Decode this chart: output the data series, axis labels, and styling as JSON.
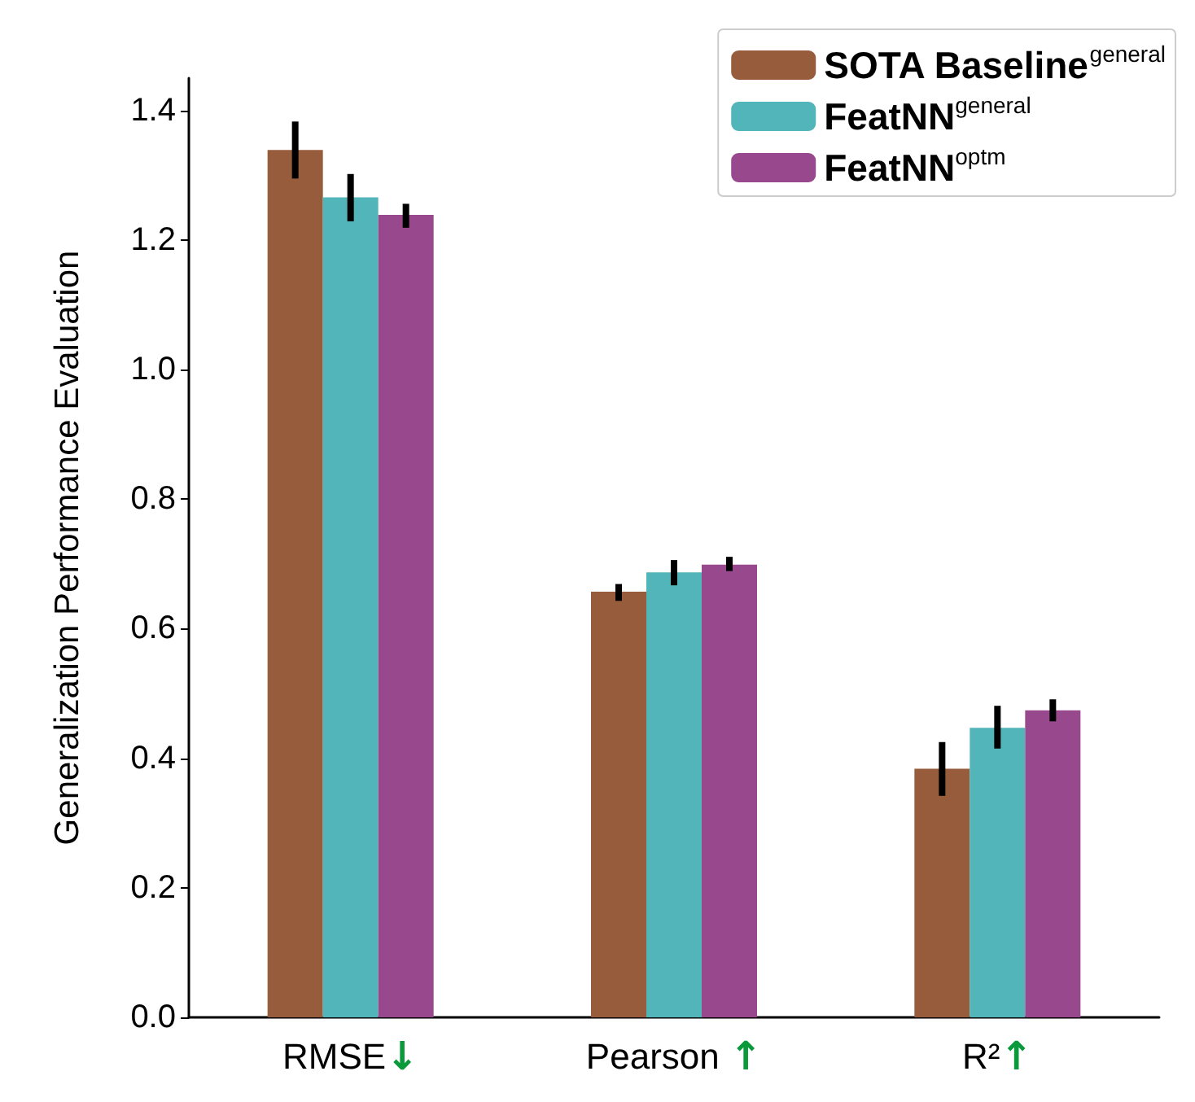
{
  "chart_data": {
    "type": "bar",
    "ylabel": "Generalization Performance Evaluation",
    "categories": [
      "RMSE↓",
      "Pearson ↑",
      "R²↑"
    ],
    "series": [
      {
        "name": "SOTA Baseline$^{general}$",
        "color": "#975c3c",
        "values": [
          1.339,
          0.657,
          0.384
        ],
        "errors": [
          [
            1.295,
            1.383
          ],
          [
            0.643,
            0.669
          ],
          [
            0.342,
            0.425
          ]
        ]
      },
      {
        "name": "FeatNN$^{general}$",
        "color": "#52b5ba",
        "values": [
          1.266,
          0.687,
          0.447
        ],
        "errors": [
          [
            1.229,
            1.302
          ],
          [
            0.667,
            0.706
          ],
          [
            0.415,
            0.481
          ]
        ]
      },
      {
        "name": "FeatNN$^{optm}$",
        "color": "#98488d",
        "values": [
          1.239,
          0.699,
          0.474
        ],
        "errors": [
          [
            1.219,
            1.256
          ],
          [
            0.689,
            0.711
          ],
          [
            0.457,
            0.491
          ]
        ]
      }
    ],
    "ylim": [
      0,
      1.45
    ],
    "yticks": [
      {
        "value": 0,
        "label": "0.0"
      },
      0.2,
      0.4,
      0.6,
      0.8,
      {
        "value": 1,
        "label": "1.0"
      },
      1.2,
      1.4
    ],
    "grid": false,
    "legend": "top right"
  }
}
